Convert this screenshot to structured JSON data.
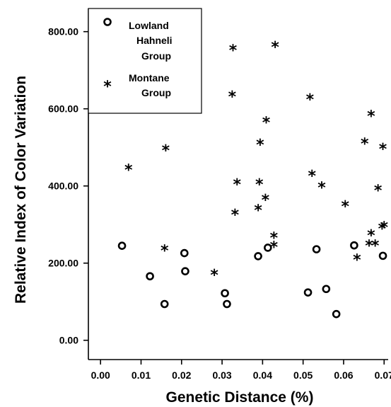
{
  "chart_data": {
    "type": "scatter",
    "xlabel": "Genetic Distance (%)",
    "ylabel": "Relative Index of Color Variation",
    "xlim": [
      -0.003,
      0.071
    ],
    "ylim": [
      -50,
      860
    ],
    "x_ticks": [
      "0.00",
      "0.01",
      "0.02",
      "0.03",
      "0.04",
      "0.05",
      "0.06",
      "0.07"
    ],
    "y_ticks": [
      "0.00",
      "200.00",
      "400.00",
      "600.00",
      "800.00"
    ],
    "legend_position": "top-left",
    "legend_lines": {
      "lowland": [
        "Lowland",
        "Hahneli",
        "Group"
      ],
      "montane": [
        "Montane",
        "Group"
      ]
    },
    "series": [
      {
        "name": "Lowland Hahneli Group",
        "marker": "circle",
        "points": [
          [
            0.0053,
            245
          ],
          [
            0.0122,
            166
          ],
          [
            0.0158,
            94
          ],
          [
            0.0207,
            226
          ],
          [
            0.0209,
            179
          ],
          [
            0.0307,
            122
          ],
          [
            0.0312,
            94
          ],
          [
            0.0389,
            218
          ],
          [
            0.0413,
            240
          ],
          [
            0.0512,
            124
          ],
          [
            0.0533,
            236
          ],
          [
            0.0557,
            133
          ],
          [
            0.0582,
            68
          ],
          [
            0.0626,
            246
          ],
          [
            0.0697,
            219
          ]
        ]
      },
      {
        "name": "Montane Group",
        "marker": "star",
        "points": [
          [
            0.0069,
            440
          ],
          [
            0.0158,
            231
          ],
          [
            0.0161,
            490
          ],
          [
            0.0281,
            167
          ],
          [
            0.0325,
            630
          ],
          [
            0.0327,
            750
          ],
          [
            0.0332,
            323
          ],
          [
            0.0337,
            402
          ],
          [
            0.0389,
            335
          ],
          [
            0.0392,
            402
          ],
          [
            0.0394,
            505
          ],
          [
            0.0407,
            362
          ],
          [
            0.0409,
            563
          ],
          [
            0.0428,
            240
          ],
          [
            0.0428,
            264
          ],
          [
            0.0431,
            758
          ],
          [
            0.0517,
            622
          ],
          [
            0.0522,
            424
          ],
          [
            0.0546,
            394
          ],
          [
            0.0604,
            345
          ],
          [
            0.0633,
            207
          ],
          [
            0.0652,
            508
          ],
          [
            0.0663,
            244
          ],
          [
            0.0668,
            579
          ],
          [
            0.0668,
            270
          ],
          [
            0.0678,
            244
          ],
          [
            0.0685,
            387
          ],
          [
            0.0695,
            288
          ],
          [
            0.0697,
            494
          ],
          [
            0.07,
            291
          ]
        ]
      }
    ]
  }
}
